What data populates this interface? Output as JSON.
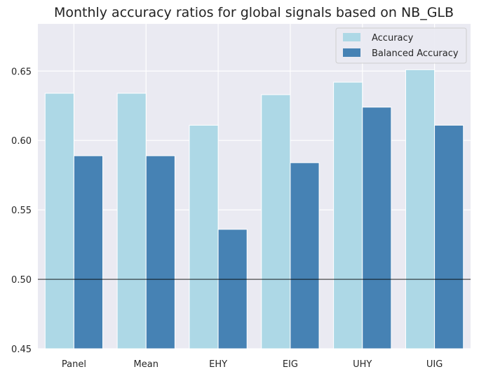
{
  "chart_data": {
    "type": "bar",
    "title": "Monthly accuracy ratios for global signals based on NB_GLB",
    "xlabel": "",
    "ylabel": "",
    "categories": [
      "Panel",
      "Mean",
      "EHY",
      "EIG",
      "UHY",
      "UIG"
    ],
    "series": [
      {
        "name": "Accuracy",
        "values": [
          0.634,
          0.634,
          0.611,
          0.633,
          0.642,
          0.651
        ],
        "color": "#add8e6"
      },
      {
        "name": "Balanced Accuracy",
        "values": [
          0.589,
          0.589,
          0.536,
          0.584,
          0.624,
          0.611
        ],
        "color": "#4682b4"
      }
    ],
    "ylim": [
      0.45,
      0.684
    ],
    "yticks": [
      0.45,
      0.5,
      0.55,
      0.6,
      0.65
    ],
    "ytick_labels": [
      "0.45",
      "0.50",
      "0.55",
      "0.60",
      "0.65"
    ],
    "reference_line": 0.5,
    "grid": true,
    "legend_position": "top-right",
    "background_color": "#eaeaf2",
    "grid_color": "#ffffff"
  }
}
